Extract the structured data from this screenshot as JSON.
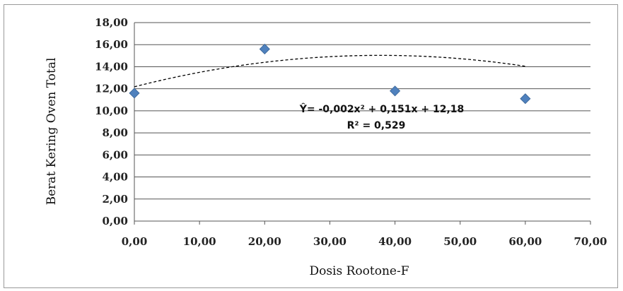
{
  "chart_data": {
    "type": "scatter",
    "xlabel": "Dosis Rootone-F",
    "ylabel": "Berat Kering Oven Total",
    "xlim": [
      0,
      70
    ],
    "ylim": [
      0,
      18
    ],
    "x_ticks": [
      "0,00",
      "10,00",
      "20,00",
      "30,00",
      "40,00",
      "50,00",
      "60,00",
      "70,00"
    ],
    "y_ticks": [
      "0,00",
      "2,00",
      "4,00",
      "6,00",
      "8,00",
      "10,00",
      "12,00",
      "14,00",
      "16,00",
      "18,00"
    ],
    "grid": "horizontal",
    "marker": "diamond",
    "marker_color": "#4f81bd",
    "points": [
      {
        "x": 0,
        "y": 11.6
      },
      {
        "x": 20,
        "y": 15.6
      },
      {
        "x": 40,
        "y": 11.8
      },
      {
        "x": 60,
        "y": 11.1
      }
    ],
    "trendline": {
      "kind": "polynomial-2",
      "style": "dashed",
      "color": "#000000",
      "a": -0.002,
      "b": 0.151,
      "c": 12.18,
      "x_range": [
        0,
        60
      ]
    },
    "annotation": {
      "equation": "Ŷ= -0,002x² + 0,151x + 12,18",
      "r2": "R² = 0,529"
    }
  }
}
